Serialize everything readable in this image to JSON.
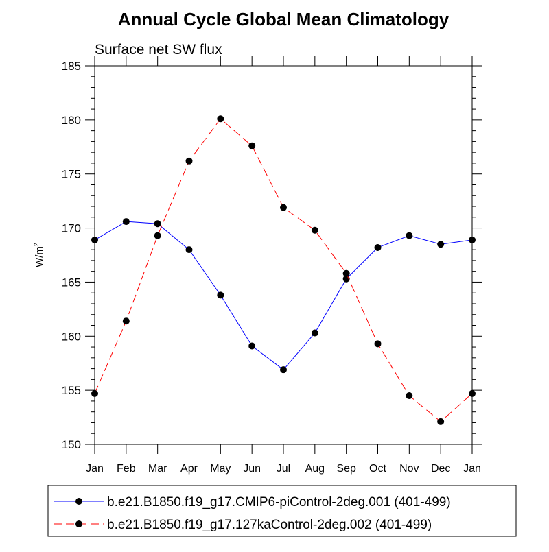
{
  "chart_data": {
    "type": "line",
    "title": "Annual Cycle Global Mean Climatology",
    "subtitle": "Surface net SW flux",
    "xlabel": "",
    "ylabel": "W/m",
    "ylabel_sup": "2",
    "ylim": [
      150,
      185
    ],
    "yticks": [
      "150",
      "155",
      "160",
      "165",
      "170",
      "175",
      "180",
      "185"
    ],
    "categories": [
      "Jan",
      "Feb",
      "Mar",
      "Apr",
      "May",
      "Jun",
      "Jul",
      "Aug",
      "Sep",
      "Oct",
      "Nov",
      "Dec",
      "Jan"
    ],
    "grid": false,
    "legend_position": "bottom",
    "series": [
      {
        "name": "b.e21.B1850.f19_g17.CMIP6-piControl-2deg.001 (401-499)",
        "color": "#0000ff",
        "dash": "solid",
        "values": [
          168.9,
          170.6,
          170.4,
          168.0,
          163.8,
          159.1,
          156.9,
          160.3,
          165.3,
          168.2,
          169.3,
          168.5,
          168.9
        ]
      },
      {
        "name": "b.e21.B1850.f19_g17.127kaControl-2deg.002 (401-499)",
        "color": "#ff0000",
        "dash": "dashed",
        "values": [
          154.7,
          161.4,
          169.3,
          176.2,
          180.1,
          177.6,
          171.9,
          169.8,
          165.8,
          159.3,
          154.5,
          152.1,
          154.7
        ]
      }
    ]
  }
}
